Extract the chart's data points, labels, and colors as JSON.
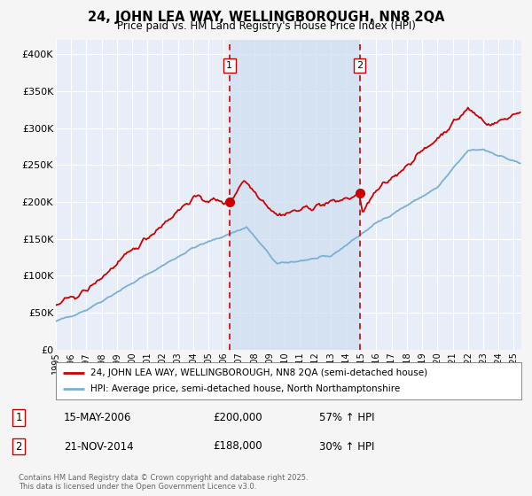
{
  "title": "24, JOHN LEA WAY, WELLINGBOROUGH, NN8 2QA",
  "subtitle": "Price paid vs. HM Land Registry's House Price Index (HPI)",
  "bg_color": "#f5f5f5",
  "plot_bg_color": "#e8eef8",
  "grid_color": "#ffffff",
  "red_line_color": "#cc0000",
  "blue_line_color": "#7ab0d4",
  "highlight_bg": "#ccddf0",
  "dashed_line_color": "#cc0000",
  "transaction1_date_num": 2006.37,
  "transaction1_price": 200000,
  "transaction2_date_num": 2014.9,
  "transaction2_price": 188000,
  "legend_line1": "24, JOHN LEA WAY, WELLINGBOROUGH, NN8 2QA (semi-detached house)",
  "legend_line2": "HPI: Average price, semi-detached house, North Northamptonshire",
  "ann1_date": "15-MAY-2006",
  "ann1_price": "£200,000",
  "ann1_hpi": "57% ↑ HPI",
  "ann2_date": "21-NOV-2014",
  "ann2_price": "£188,000",
  "ann2_hpi": "30% ↑ HPI",
  "footer": "Contains HM Land Registry data © Crown copyright and database right 2025.\nThis data is licensed under the Open Government Licence v3.0.",
  "ylim": [
    0,
    420000
  ],
  "yticks": [
    0,
    50000,
    100000,
    150000,
    200000,
    250000,
    300000,
    350000,
    400000
  ],
  "ytick_labels": [
    "£0",
    "£50K",
    "£100K",
    "£150K",
    "£200K",
    "£250K",
    "£300K",
    "£350K",
    "£400K"
  ]
}
